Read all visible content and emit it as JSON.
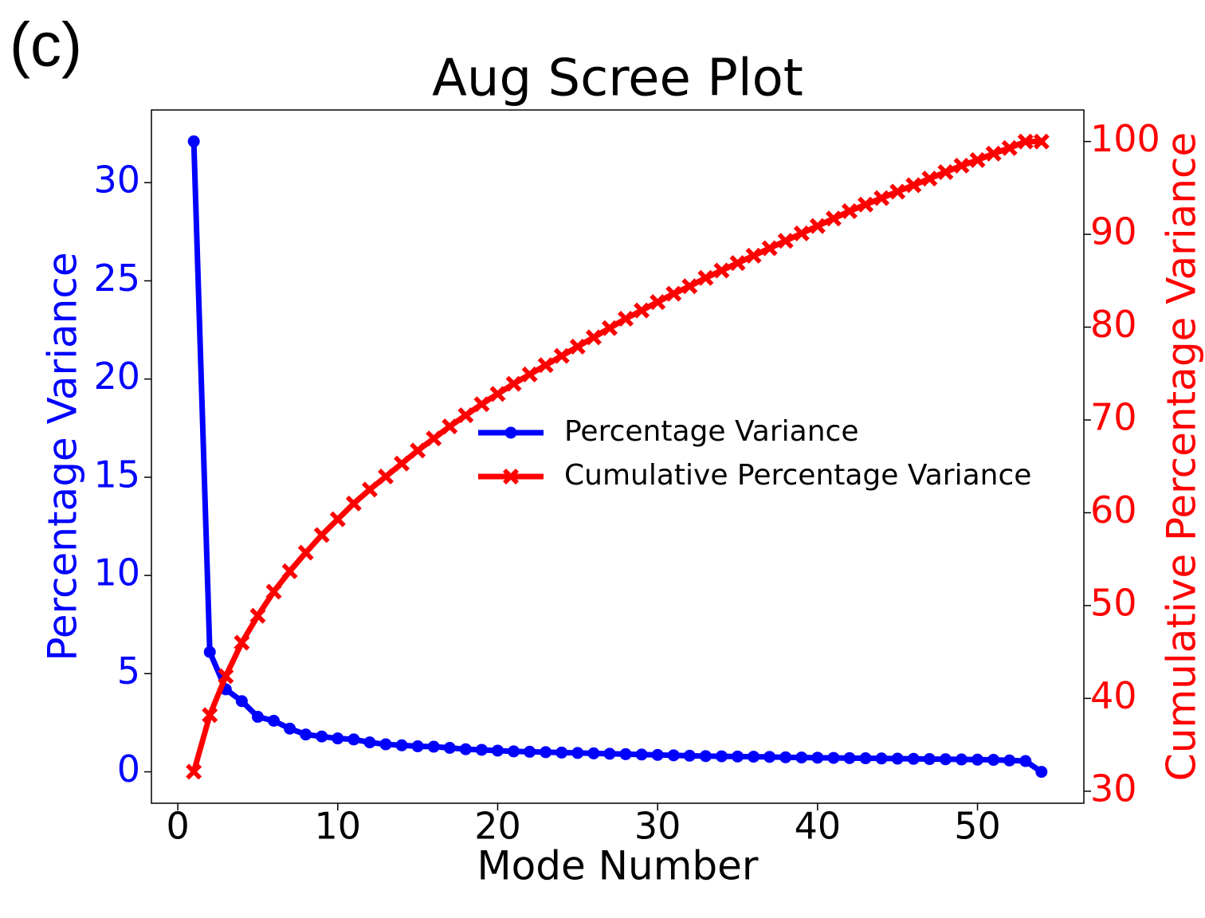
{
  "chart_data": {
    "type": "line",
    "title": "Aug Scree Plot",
    "panel_label": "(c)",
    "xlabel": "Mode Number",
    "ylabel": "Percentage Variance",
    "y2label": "Cumulative Percentage Variance",
    "x": [
      1,
      2,
      3,
      4,
      5,
      6,
      7,
      8,
      9,
      10,
      11,
      12,
      13,
      14,
      15,
      16,
      17,
      18,
      19,
      20,
      21,
      22,
      23,
      24,
      25,
      26,
      27,
      28,
      29,
      30,
      31,
      32,
      33,
      34,
      35,
      36,
      37,
      38,
      39,
      40,
      41,
      42,
      43,
      44,
      45,
      46,
      47,
      48,
      49,
      50,
      51,
      52,
      53,
      54
    ],
    "series": [
      {
        "name": "Percentage Variance",
        "color": "#0000ff",
        "marker": "circle",
        "axis": "y",
        "values": [
          32.1,
          6.1,
          4.2,
          3.6,
          2.8,
          2.6,
          2.2,
          1.9,
          1.8,
          1.7,
          1.65,
          1.5,
          1.4,
          1.35,
          1.3,
          1.28,
          1.22,
          1.15,
          1.12,
          1.08,
          1.04,
          1.02,
          1.0,
          0.98,
          0.96,
          0.94,
          0.92,
          0.9,
          0.88,
          0.86,
          0.84,
          0.82,
          0.8,
          0.79,
          0.78,
          0.77,
          0.76,
          0.74,
          0.73,
          0.72,
          0.71,
          0.7,
          0.69,
          0.68,
          0.67,
          0.66,
          0.65,
          0.64,
          0.63,
          0.62,
          0.61,
          0.58,
          0.55,
          0.0
        ]
      },
      {
        "name": "Cumulative Percentage Variance",
        "color": "#ff0000",
        "marker": "x",
        "axis": "y2",
        "values": [
          32.1,
          38.2,
          42.4,
          46.0,
          48.9,
          51.5,
          53.7,
          55.7,
          57.6,
          59.3,
          61.0,
          62.5,
          63.9,
          65.3,
          66.7,
          68.0,
          69.3,
          70.5,
          71.7,
          72.8,
          73.9,
          74.9,
          75.9,
          76.9,
          77.9,
          78.9,
          79.9,
          80.9,
          81.8,
          82.7,
          83.6,
          84.4,
          85.3,
          86.1,
          86.9,
          87.7,
          88.5,
          89.3,
          90.1,
          90.9,
          91.7,
          92.5,
          93.2,
          93.9,
          94.6,
          95.3,
          96.0,
          96.7,
          97.4,
          98.0,
          98.7,
          99.3,
          100.0,
          100.0
        ]
      }
    ],
    "xlim": [
      -1.65,
      56.65
    ],
    "xticks": [
      0,
      10,
      20,
      30,
      40,
      50
    ],
    "ylim": [
      -1.6,
      33.7
    ],
    "yticks": [
      0,
      5,
      10,
      15,
      20,
      25,
      30
    ],
    "y2lim": [
      28.7,
      103.4
    ],
    "y2ticks": [
      30,
      40,
      50,
      60,
      70,
      80,
      90,
      100
    ],
    "legend": "center right",
    "grid": false
  }
}
